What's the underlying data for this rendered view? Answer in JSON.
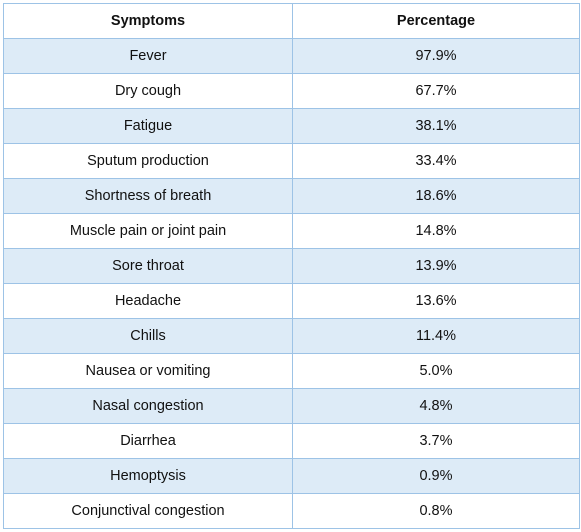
{
  "table": {
    "headers": [
      "Symptoms",
      "Percentage"
    ],
    "rows": [
      {
        "symptom": "Fever",
        "percentage": "97.9%"
      },
      {
        "symptom": "Dry cough",
        "percentage": "67.7%"
      },
      {
        "symptom": "Fatigue",
        "percentage": "38.1%"
      },
      {
        "symptom": "Sputum production",
        "percentage": "33.4%"
      },
      {
        "symptom": "Shortness of breath",
        "percentage": "18.6%"
      },
      {
        "symptom": "Muscle pain or joint pain",
        "percentage": "14.8%"
      },
      {
        "symptom": "Sore throat",
        "percentage": "13.9%"
      },
      {
        "symptom": "Headache",
        "percentage": "13.6%"
      },
      {
        "symptom": "Chills",
        "percentage": "11.4%"
      },
      {
        "symptom": "Nausea or vomiting",
        "percentage": "5.0%"
      },
      {
        "symptom": "Nasal congestion",
        "percentage": "4.8%"
      },
      {
        "symptom": "Diarrhea",
        "percentage": "3.7%"
      },
      {
        "symptom": "Hemoptysis",
        "percentage": "0.9%"
      },
      {
        "symptom": "Conjunctival congestion",
        "percentage": "0.8%"
      }
    ]
  },
  "colors": {
    "border": "#9dc3e6",
    "shaded_row": "#ddebf7",
    "plain_row": "#ffffff"
  }
}
